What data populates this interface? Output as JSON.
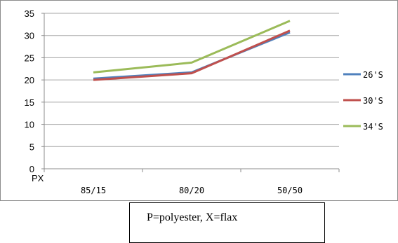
{
  "chart_data": {
    "type": "line",
    "categories": [
      "85/15",
      "80/20",
      "50/50"
    ],
    "xlabel": "PX",
    "ylabel": "",
    "ylim": [
      0,
      35
    ],
    "yticks": [
      "0",
      "5",
      "10",
      "15",
      "20",
      "25",
      "30",
      "35"
    ],
    "grid": true,
    "legend": "right",
    "series": [
      {
        "name": "26'S",
        "color": "#4f81bd",
        "values": [
          20.3,
          21.7,
          30.7
        ]
      },
      {
        "name": "30'S",
        "color": "#c0504d",
        "values": [
          20.0,
          21.5,
          31.1
        ]
      },
      {
        "name": "34'S",
        "color": "#9bbb59",
        "values": [
          21.7,
          23.9,
          33.3
        ]
      }
    ]
  },
  "note": "P=polyester, X=flax"
}
